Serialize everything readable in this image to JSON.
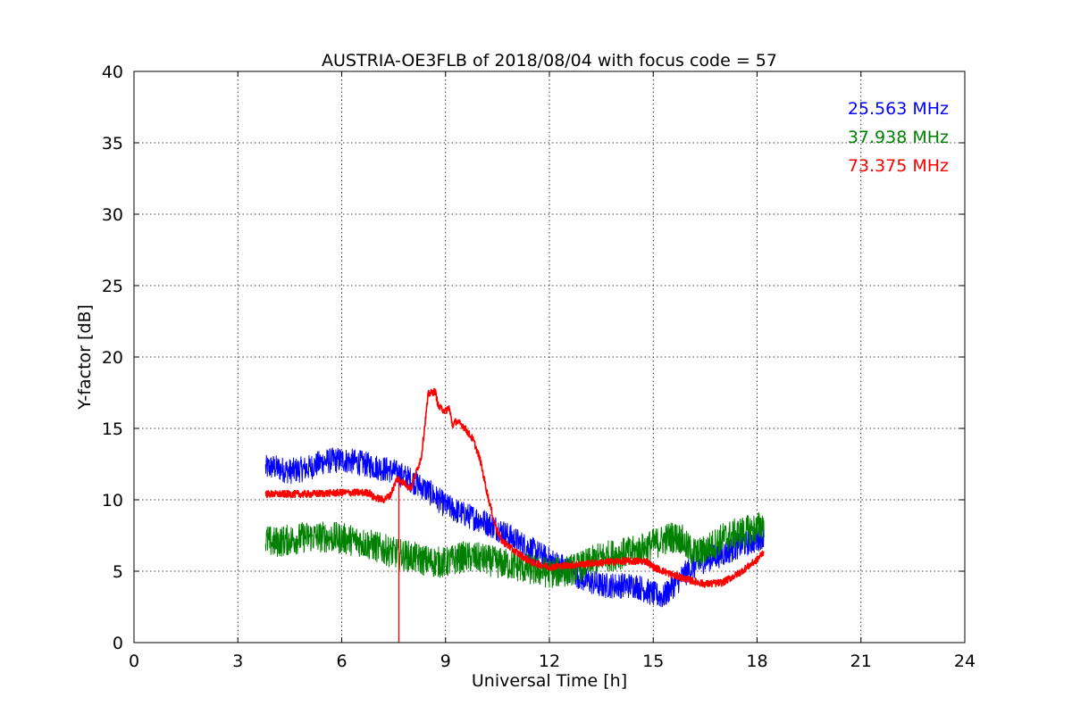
{
  "chart_data": {
    "type": "line",
    "title": "AUSTRIA-OE3FLB of 2018/08/04 with focus code = 57",
    "xlabel": "Universal Time [h]",
    "ylabel": "Y-factor [dB]",
    "xlim": [
      0,
      24
    ],
    "ylim": [
      0,
      40
    ],
    "xticks": [
      0,
      3,
      6,
      9,
      12,
      15,
      18,
      21,
      24
    ],
    "yticks": [
      0,
      5,
      10,
      15,
      20,
      25,
      30,
      35,
      40
    ],
    "grid": true,
    "legend_position": "top-right",
    "series": [
      {
        "name": "25.563 MHz",
        "color": "#0000ff",
        "noise": 0.9,
        "points": [
          [
            3.8,
            12.2
          ],
          [
            4.0,
            12.3
          ],
          [
            4.5,
            12.0
          ],
          [
            5.0,
            12.2
          ],
          [
            5.5,
            12.7
          ],
          [
            6.0,
            12.8
          ],
          [
            6.5,
            12.6
          ],
          [
            7.0,
            12.3
          ],
          [
            7.5,
            12.0
          ],
          [
            8.0,
            11.4
          ],
          [
            8.5,
            10.6
          ],
          [
            9.0,
            9.6
          ],
          [
            9.5,
            9.0
          ],
          [
            10.0,
            8.6
          ],
          [
            10.5,
            8.0
          ],
          [
            11.0,
            7.2
          ],
          [
            11.5,
            6.5
          ],
          [
            12.0,
            5.8
          ],
          [
            12.5,
            5.2
          ],
          [
            13.0,
            4.4
          ],
          [
            13.5,
            4.0
          ],
          [
            14.0,
            4.0
          ],
          [
            14.5,
            4.0
          ],
          [
            15.0,
            3.4
          ],
          [
            15.3,
            3.2
          ],
          [
            15.5,
            3.8
          ],
          [
            16.0,
            5.0
          ],
          [
            16.5,
            5.8
          ],
          [
            17.0,
            6.2
          ],
          [
            17.5,
            6.8
          ],
          [
            18.0,
            7.2
          ],
          [
            18.2,
            7.6
          ]
        ]
      },
      {
        "name": "37.938 MHz",
        "color": "#008000",
        "noise": 1.1,
        "points": [
          [
            3.8,
            7.2
          ],
          [
            4.0,
            7.0
          ],
          [
            4.5,
            7.2
          ],
          [
            5.0,
            7.4
          ],
          [
            5.5,
            7.4
          ],
          [
            6.0,
            7.3
          ],
          [
            6.5,
            7.1
          ],
          [
            7.0,
            6.7
          ],
          [
            7.5,
            6.3
          ],
          [
            8.0,
            6.0
          ],
          [
            8.5,
            5.7
          ],
          [
            9.0,
            5.6
          ],
          [
            9.5,
            6.0
          ],
          [
            10.0,
            5.9
          ],
          [
            10.5,
            5.6
          ],
          [
            11.0,
            5.4
          ],
          [
            11.5,
            5.1
          ],
          [
            12.0,
            4.9
          ],
          [
            12.5,
            5.0
          ],
          [
            13.0,
            5.4
          ],
          [
            13.5,
            6.0
          ],
          [
            14.0,
            6.2
          ],
          [
            14.5,
            6.4
          ],
          [
            15.0,
            6.9
          ],
          [
            15.5,
            7.4
          ],
          [
            15.8,
            7.3
          ],
          [
            16.0,
            6.6
          ],
          [
            16.3,
            6.2
          ],
          [
            16.7,
            6.8
          ],
          [
            17.0,
            7.3
          ],
          [
            17.5,
            7.7
          ],
          [
            18.0,
            8.0
          ],
          [
            18.2,
            8.4
          ]
        ]
      },
      {
        "name": "73.375 MHz",
        "color": "#ff0000",
        "noise": 0.25,
        "points": [
          [
            3.8,
            10.4
          ],
          [
            5.0,
            10.4
          ],
          [
            6.0,
            10.5
          ],
          [
            6.8,
            10.5
          ],
          [
            6.9,
            10.2
          ],
          [
            7.2,
            10.0
          ],
          [
            7.4,
            10.3
          ],
          [
            7.6,
            11.5
          ],
          [
            7.8,
            11.2
          ],
          [
            8.0,
            10.8
          ],
          [
            8.3,
            13.0
          ],
          [
            8.5,
            17.4
          ],
          [
            8.7,
            17.6
          ],
          [
            8.8,
            16.5
          ],
          [
            9.0,
            16.2
          ],
          [
            9.1,
            16.5
          ],
          [
            9.2,
            15.2
          ],
          [
            9.3,
            15.5
          ],
          [
            9.5,
            15.2
          ],
          [
            9.8,
            14.2
          ],
          [
            10.0,
            12.8
          ],
          [
            10.2,
            10.5
          ],
          [
            10.4,
            8.5
          ],
          [
            10.6,
            7.2
          ],
          [
            11.0,
            6.4
          ],
          [
            11.5,
            5.6
          ],
          [
            12.0,
            5.3
          ],
          [
            12.5,
            5.4
          ],
          [
            13.0,
            5.5
          ],
          [
            13.5,
            5.6
          ],
          [
            14.0,
            5.7
          ],
          [
            14.5,
            5.7
          ],
          [
            14.8,
            5.7
          ],
          [
            15.0,
            5.3
          ],
          [
            15.5,
            4.8
          ],
          [
            16.0,
            4.4
          ],
          [
            16.5,
            4.1
          ],
          [
            17.0,
            4.2
          ],
          [
            17.5,
            4.9
          ],
          [
            18.0,
            5.8
          ],
          [
            18.2,
            6.4
          ]
        ],
        "spikes": [
          [
            7.65,
            0.0
          ]
        ]
      }
    ]
  }
}
